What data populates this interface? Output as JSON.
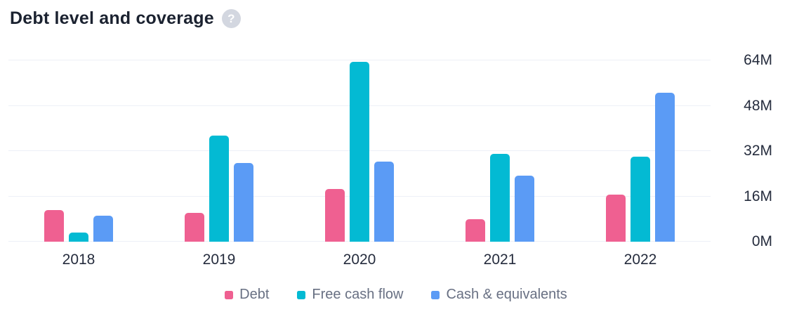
{
  "header": {
    "title": "Debt level and coverage",
    "help_glyph": "?"
  },
  "chart_data": {
    "type": "bar",
    "title": "Debt level and coverage",
    "categories": [
      "2018",
      "2019",
      "2020",
      "2021",
      "2022"
    ],
    "series": [
      {
        "name": "Debt",
        "color": "#ef6091",
        "values": [
          11.1,
          10.3,
          18.6,
          7.9,
          16.7
        ]
      },
      {
        "name": "Free cash flow",
        "color": "#03bad3",
        "values": [
          3.3,
          37.4,
          63.4,
          31.0,
          30.1
        ]
      },
      {
        "name": "Cash & equivalents",
        "color": "#5b9bf5",
        "values": [
          9.1,
          27.8,
          28.3,
          23.3,
          52.7
        ]
      }
    ],
    "unit": "M",
    "xlabel": "",
    "ylabel": "",
    "y_ticks": [
      "0M",
      "16M",
      "32M",
      "48M",
      "64M"
    ],
    "ylim": [
      0,
      64
    ],
    "grid": true,
    "legend_position": "bottom"
  },
  "colors": {
    "grid": "#edf0f7",
    "axis_text": "#252c3d",
    "legend_text": "#687083",
    "title_text": "#1b2230",
    "help_bg": "#d3d7e0"
  }
}
